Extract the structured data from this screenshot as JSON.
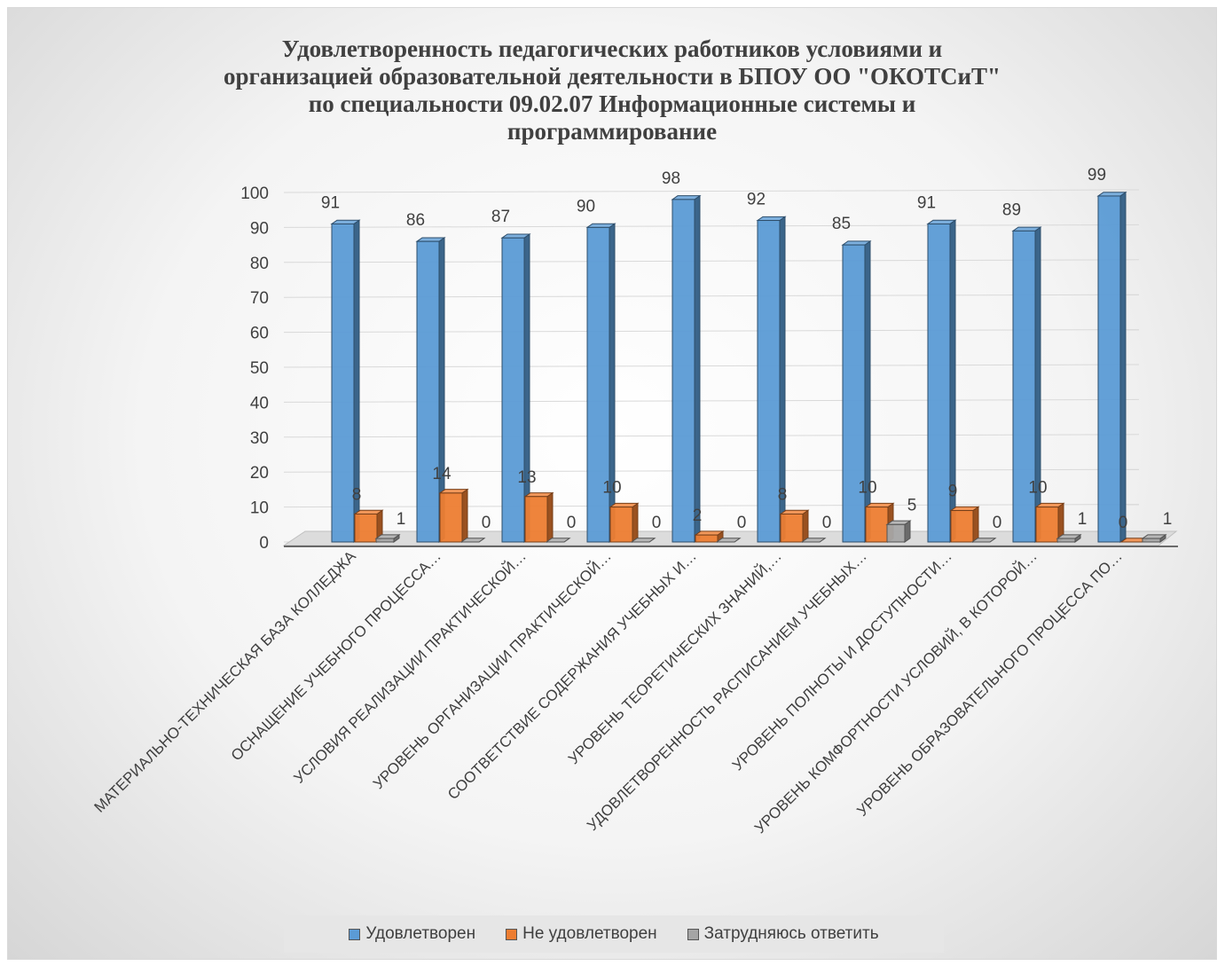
{
  "chart_data": {
    "type": "bar",
    "title": "Удовлетворенность педагогических работников условиями и\nорганизацией образовательной деятельности в БПОУ ОО \"ОКОТСиТ\"\nпо специальности 09.02.07 Информационные системы и\nпрограммирование",
    "categories": [
      "МАТЕРИАЛЬНО-ТЕХНИЧЕСКАЯ БАЗА КОЛЛЕДЖА",
      "ОСНАЩЕНИЕ УЧЕБНОГО ПРОЦЕССА…",
      "УСЛОВИЯ РЕАЛИЗАЦИИ ПРАКТИЧЕСКОЙ…",
      "УРОВЕНЬ ОРГАНИЗАЦИИ ПРАКТИЧЕСКОЙ…",
      "СООТВЕТСТВИЕ СОДЕРЖАНИЯ УЧЕБНЫХ И…",
      "УРОВЕНЬ ТЕОРЕТИЧЕСКИХ ЗНАНИЙ,…",
      "УДОВЛЕТВОРЕННОСТЬ РАСПИСАНИЕМ УЧЕБНЫХ…",
      "УРОВЕНЬ ПОЛНОТЫ И ДОСТУПНОСТИ…",
      "УРОВЕНЬ КОМФОРТНОСТИ УСЛОВИЙ, В КОТОРОЙ…",
      "УРОВЕНЬ ОБРАЗОВАТЕЛЬНОГО ПРОЦЕССА ПО…"
    ],
    "series": [
      {
        "name": "Удовлетворен",
        "color": "#5b9bd5",
        "values": [
          91,
          86,
          87,
          90,
          98,
          92,
          85,
          91,
          89,
          99
        ]
      },
      {
        "name": "Не удовлетворен",
        "color": "#ed7d31",
        "values": [
          8,
          14,
          13,
          10,
          2,
          8,
          10,
          9,
          10,
          0
        ]
      },
      {
        "name": "Затрудняюсь ответить",
        "color": "#a5a5a5",
        "values": [
          1,
          0,
          0,
          0,
          0,
          0,
          5,
          0,
          1,
          1
        ]
      }
    ],
    "ylim": [
      0,
      100
    ],
    "yticks": [
      0,
      10,
      20,
      30,
      40,
      50,
      60,
      70,
      80,
      90,
      100
    ],
    "legend_position": "bottom",
    "grid": true,
    "data_labels": true,
    "style": "3d-clustered-column"
  }
}
